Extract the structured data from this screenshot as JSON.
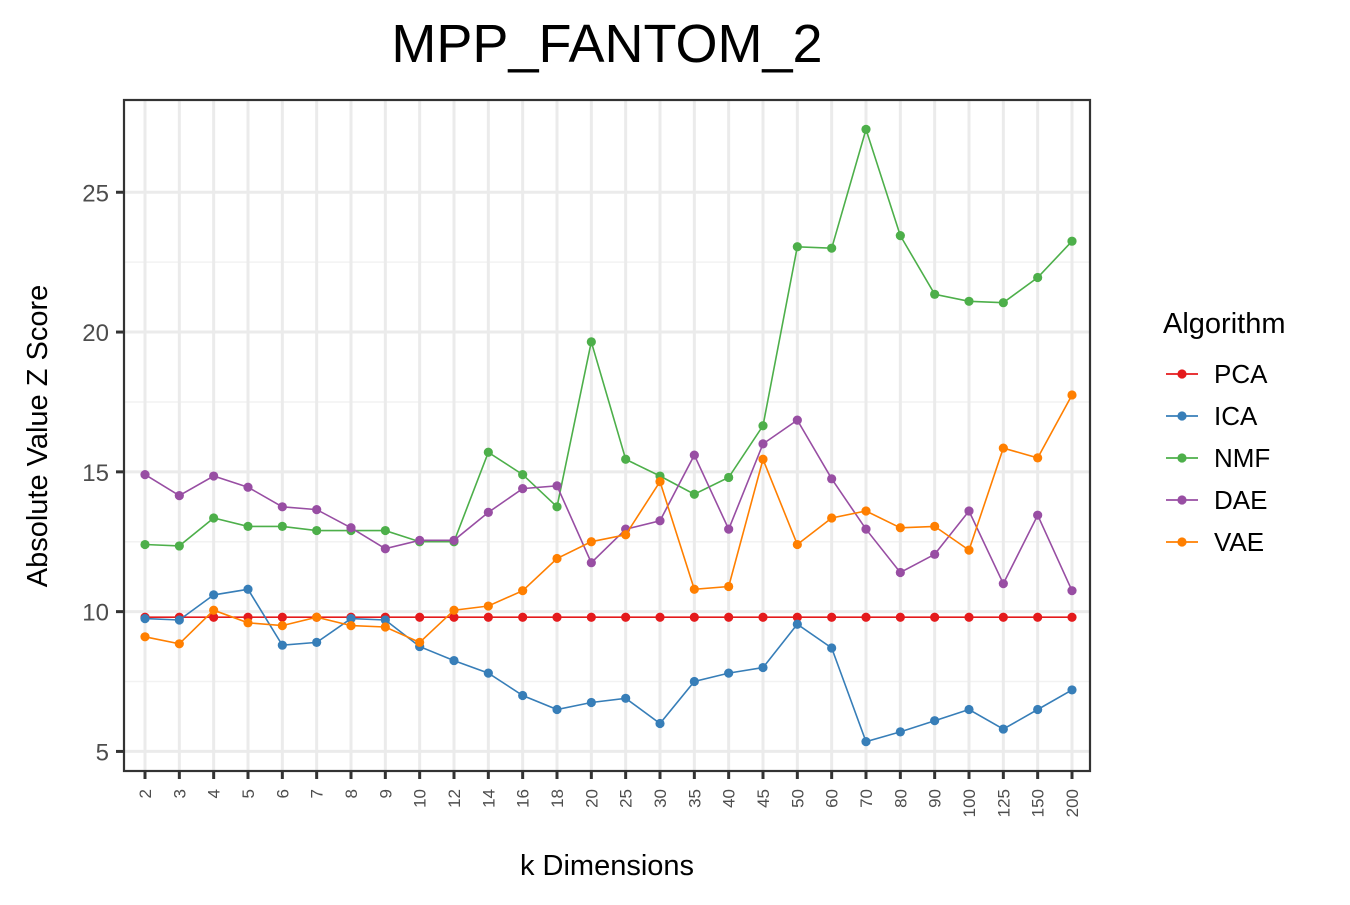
{
  "chart_data": {
    "type": "line",
    "title": "MPP_FANTOM_2",
    "xlabel": "k Dimensions",
    "ylabel": "Absolute Value Z Score",
    "categories": [
      "2",
      "3",
      "4",
      "5",
      "6",
      "7",
      "8",
      "9",
      "10",
      "12",
      "14",
      "16",
      "18",
      "20",
      "25",
      "30",
      "35",
      "40",
      "45",
      "50",
      "60",
      "70",
      "80",
      "90",
      "100",
      "125",
      "150",
      "200"
    ],
    "ylim": [
      4.3,
      28.3
    ],
    "yticks": [
      5,
      10,
      15,
      20,
      25
    ],
    "ytick_labels": [
      "5",
      "10",
      "15",
      "20",
      "25"
    ],
    "grid": true,
    "legend": {
      "title": "Algorithm",
      "position": "right"
    },
    "series": [
      {
        "name": "PCA",
        "color": "#e41a1c",
        "values": [
          9.8,
          9.8,
          9.8,
          9.8,
          9.8,
          9.8,
          9.8,
          9.8,
          9.8,
          9.8,
          9.8,
          9.8,
          9.8,
          9.8,
          9.8,
          9.8,
          9.8,
          9.8,
          9.8,
          9.8,
          9.8,
          9.8,
          9.8,
          9.8,
          9.8,
          9.8,
          9.8,
          9.8
        ]
      },
      {
        "name": "ICA",
        "color": "#377eb8",
        "values": [
          9.75,
          9.7,
          10.6,
          10.8,
          8.8,
          8.9,
          9.75,
          9.7,
          8.75,
          8.25,
          7.8,
          7.0,
          6.5,
          6.75,
          6.9,
          6.0,
          7.5,
          7.8,
          8.0,
          9.55,
          8.7,
          5.35,
          5.7,
          6.1,
          6.5,
          5.8,
          6.5,
          7.2
        ]
      },
      {
        "name": "NMF",
        "color": "#4daf4a",
        "values": [
          12.4,
          12.35,
          13.35,
          13.05,
          13.05,
          12.9,
          12.9,
          12.9,
          12.5,
          12.5,
          15.7,
          14.9,
          13.75,
          19.65,
          15.45,
          14.85,
          14.2,
          14.8,
          16.65,
          23.05,
          23.0,
          27.25,
          23.45,
          21.35,
          21.1,
          21.05,
          21.95,
          23.25
        ]
      },
      {
        "name": "DAE",
        "color": "#984ea3",
        "values": [
          14.9,
          14.15,
          14.85,
          14.45,
          13.75,
          13.65,
          13.0,
          12.25,
          12.55,
          12.55,
          13.55,
          14.4,
          14.5,
          11.75,
          12.95,
          13.25,
          15.6,
          12.95,
          16.0,
          16.85,
          14.75,
          12.95,
          11.4,
          12.05,
          13.6,
          11.0,
          13.45,
          10.75
        ]
      },
      {
        "name": "VAE",
        "color": "#ff7f00",
        "values": [
          9.1,
          8.85,
          10.05,
          9.6,
          9.5,
          9.8,
          9.5,
          9.45,
          8.9,
          10.05,
          10.2,
          10.75,
          11.9,
          12.5,
          12.75,
          14.65,
          10.8,
          10.9,
          15.45,
          12.4,
          13.35,
          13.6,
          13.0,
          13.05,
          12.2,
          15.85,
          15.5,
          17.75
        ]
      }
    ]
  }
}
